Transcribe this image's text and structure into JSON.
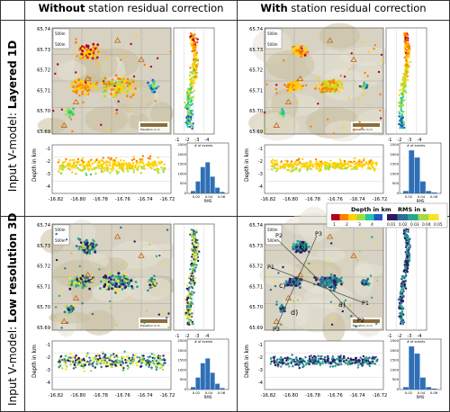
{
  "headers": {
    "without": {
      "bold": "Without",
      "rest": " station residual correction"
    },
    "with": {
      "bold": "With",
      "rest": " station residual correction"
    }
  },
  "rows": [
    {
      "prefix": "Input V-model: ",
      "bold": "Layered 1D"
    },
    {
      "prefix": "Input V-model: ",
      "bold": "Low resolution 3D"
    }
  ],
  "map_axes": {
    "lat_ticks": [
      "65.74",
      "65.73",
      "65.72",
      "65.71",
      "65.70",
      "65.69"
    ],
    "lon_ticks": [
      "-16.82",
      "-16.80",
      "-16.78",
      "-16.76",
      "-16.74",
      "-16.72"
    ],
    "scale_label": "500m",
    "elev_legend": "Elevation in m"
  },
  "depth_axes": {
    "ylabel": "Depth in km",
    "ticks": [
      "-1",
      "-2",
      "-3",
      "-4"
    ]
  },
  "side_axes": {
    "ticks": [
      "-1",
      "-2",
      "-3",
      "-4"
    ]
  },
  "hist_axes": {
    "y_ticks": [
      "2500",
      "2000",
      "1500",
      "1000",
      "500",
      "0"
    ],
    "x_ticks": [
      "0.02",
      "0.04",
      "0.06"
    ],
    "xlabel": "RMS",
    "ylabel": "# of events"
  },
  "legend": {
    "depth_title": "Depth in km",
    "depth_ticks": [
      "1",
      "2",
      "3",
      "4"
    ],
    "rms_title": "RMS in s",
    "rms_ticks": [
      "0.01",
      "0.02",
      "0.03",
      "0.04",
      "0.05"
    ]
  },
  "profiles": [
    "P1",
    "P2",
    "P3",
    "P1",
    "P2",
    "P3"
  ],
  "region_labels": [
    "a)",
    "b)",
    "c)",
    "d)"
  ],
  "colors": {
    "depth_scale": [
      "#b3001a",
      "#ff7f00",
      "#ffd200",
      "#9be13c",
      "#21c7a8",
      "#2255c8"
    ],
    "rms_scale": [
      "#2b1a62",
      "#2f6e96",
      "#25a98d",
      "#a9d848",
      "#f4e625"
    ]
  },
  "chart_data": [
    {
      "type": "heatmap",
      "panel": "1D without correction"
    },
    {
      "type": "heatmap",
      "panel": "1D with correction"
    },
    {
      "type": "heatmap",
      "panel": "3D without correction"
    },
    {
      "type": "heatmap",
      "panel": "3D with correction"
    }
  ]
}
